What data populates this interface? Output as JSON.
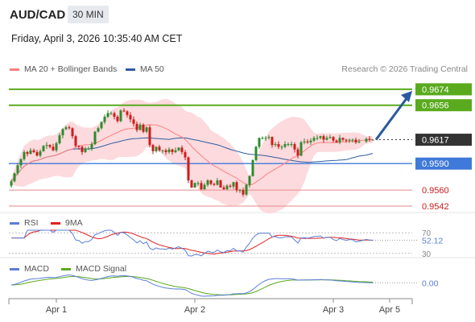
{
  "header": {
    "pair": "AUD/CAD",
    "timeframe": "30 MIN",
    "datetime": "Friday, April 3, 2026 10:35:40 AM CET",
    "credit": "Research © 2026 Trading Central"
  },
  "colors": {
    "up": "#2e8b2e",
    "down": "#d11a1a",
    "ma20": "#ff8080",
    "bollinger_fill": "#fcd3d8",
    "ma50": "#2f5c9e",
    "resistance": "#5aaa1e",
    "pivot": "#3f79d9",
    "support": "#e58a8a",
    "current": "#333333",
    "rsi": "#5b7ed6",
    "rsi_ma": "#e02020",
    "macd": "#5b7ed6",
    "macd_signal": "#5aaa1e",
    "arrow": "#2a5aa0"
  },
  "main_legend": [
    {
      "label": "MA 20 + Bollinger Bands",
      "color": "#ff8080"
    },
    {
      "label": "MA 50",
      "color": "#2f5c9e"
    }
  ],
  "rsi_legend": [
    {
      "label": "RSI",
      "color": "#5b7ed6"
    },
    {
      "label": "9MA",
      "color": "#e02020"
    }
  ],
  "macd_legend": [
    {
      "label": "MACD",
      "color": "#5b7ed6"
    },
    {
      "label": "MACD Signal",
      "color": "#5aaa1e"
    }
  ],
  "chart_data": {
    "type": "candlestick",
    "x_ticks": [
      "Apr 1",
      "Apr 2",
      "Apr 3",
      "Apr 5"
    ],
    "price_range": [
      0.95365,
      0.96885
    ],
    "levels": [
      {
        "value": 0.9674,
        "label": "0.9674",
        "kind": "resistance"
      },
      {
        "value": 0.9656,
        "label": "0.9656",
        "kind": "resistance"
      },
      {
        "value": 0.9617,
        "label": "0.9617",
        "kind": "current"
      },
      {
        "value": 0.959,
        "label": "0.9590",
        "kind": "pivot"
      },
      {
        "value": 0.956,
        "label": "0.9560",
        "kind": "support"
      },
      {
        "value": 0.9542,
        "label": "0.9542",
        "kind": "support"
      }
    ],
    "closes": [
      0.957,
      0.9579,
      0.9588,
      0.9595,
      0.9603,
      0.9601,
      0.9605,
      0.9603,
      0.9599,
      0.9604,
      0.961,
      0.9611,
      0.9609,
      0.9605,
      0.9613,
      0.9622,
      0.9629,
      0.9631,
      0.963,
      0.9621,
      0.961,
      0.9609,
      0.9603,
      0.9607,
      0.9607,
      0.9612,
      0.9626,
      0.963,
      0.9637,
      0.9643,
      0.9647,
      0.9647,
      0.9643,
      0.9638,
      0.965,
      0.9649,
      0.9645,
      0.964,
      0.9635,
      0.9628,
      0.9634,
      0.9626,
      0.9631,
      0.9611,
      0.9604,
      0.9609,
      0.9605,
      0.9605,
      0.9603,
      0.9606,
      0.9603,
      0.9605,
      0.9608,
      0.9603,
      0.9597,
      0.9571,
      0.9563,
      0.9568,
      0.9568,
      0.9561,
      0.9566,
      0.9571,
      0.9567,
      0.9566,
      0.9571,
      0.9563,
      0.9561,
      0.9565,
      0.9564,
      0.9569,
      0.956,
      0.956,
      0.9555,
      0.9566,
      0.9576,
      0.9594,
      0.9609,
      0.9619,
      0.9619,
      0.9619,
      0.962,
      0.9611,
      0.9612,
      0.9609,
      0.9609,
      0.9612,
      0.9612,
      0.9612,
      0.9606,
      0.9599,
      0.9614,
      0.9615,
      0.9614,
      0.9616,
      0.9619,
      0.9619,
      0.9621,
      0.9617,
      0.9619,
      0.962,
      0.9616,
      0.9614,
      0.9619,
      0.9617,
      0.9616,
      0.9617,
      0.9617,
      0.9614,
      0.9615,
      0.9618,
      0.9617,
      0.9617
    ],
    "x_gap_after_index": 108,
    "forecast_arrow": {
      "from": 0.9617,
      "to": 0.9674
    },
    "rsi": {
      "value_label": "52.12",
      "levels": [
        {
          "value": 70,
          "label": "70"
        },
        {
          "value": 30,
          "label": "30"
        }
      ]
    },
    "macd": {
      "value_label": "0.00"
    }
  }
}
